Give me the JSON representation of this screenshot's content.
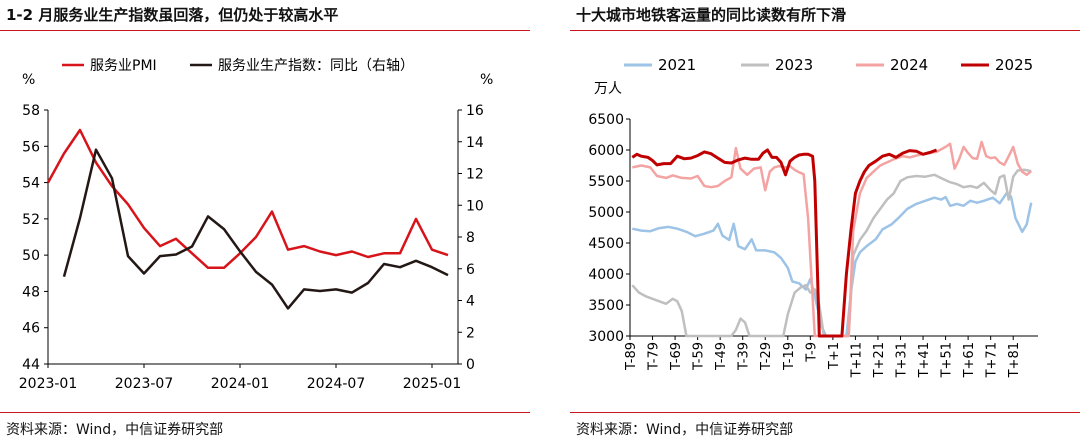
{
  "left": {
    "title": "1-2 月服务业生产指数虽回落，但仍处于较高水平",
    "source": "资料来源：Wind，中信证券研究部",
    "chart_data": {
      "type": "line",
      "y_unit_left": "%",
      "y_unit_right": "%",
      "yticks_left": [
        "58",
        "56",
        "54",
        "52",
        "50",
        "48",
        "46",
        "44"
      ],
      "yticks_right": [
        "16",
        "14",
        "12",
        "10",
        "8",
        "6",
        "4",
        "2",
        "0"
      ],
      "ylim_left": [
        44,
        58
      ],
      "ylim_right": [
        0,
        16
      ],
      "xticks": [
        "2023-01",
        "2023-07",
        "2024-01",
        "2024-07",
        "2025-01"
      ],
      "x": [
        "2023-01",
        "2023-02",
        "2023-03",
        "2023-04",
        "2023-05",
        "2023-06",
        "2023-07",
        "2023-08",
        "2023-09",
        "2023-10",
        "2023-11",
        "2023-12",
        "2024-01",
        "2024-02",
        "2024-03",
        "2024-04",
        "2024-05",
        "2024-06",
        "2024-07",
        "2024-08",
        "2024-09",
        "2024-10",
        "2024-11",
        "2024-12",
        "2025-01",
        "2025-02"
      ],
      "series": [
        {
          "name": "服务业PMI",
          "axis": "left",
          "color": "#d7141a",
          "values": [
            54.0,
            55.6,
            56.9,
            55.1,
            53.8,
            52.8,
            51.5,
            50.5,
            50.9,
            50.1,
            49.3,
            49.3,
            50.1,
            51.0,
            52.4,
            50.3,
            50.5,
            50.2,
            50.0,
            50.2,
            49.9,
            50.1,
            50.1,
            52.0,
            50.3,
            50.0
          ]
        },
        {
          "name": "服务业生产指数：同比（右轴）",
          "axis": "right",
          "color": "#231815",
          "values": [
            null,
            5.5,
            9.2,
            13.5,
            11.7,
            6.8,
            5.7,
            6.8,
            6.9,
            7.4,
            9.3,
            8.5,
            7.1,
            5.8,
            5.0,
            3.5,
            4.7,
            4.6,
            4.7,
            4.5,
            5.1,
            6.3,
            6.1,
            6.5,
            6.1,
            5.6
          ]
        }
      ]
    }
  },
  "right": {
    "title": "十大城市地铁客运量的同比读数有所下滑",
    "source": "资料来源：Wind，中信证券研究部",
    "chart_data": {
      "type": "line",
      "y_unit": "万人",
      "yticks": [
        "6500",
        "6000",
        "5500",
        "5000",
        "4500",
        "4000",
        "3500",
        "3000"
      ],
      "ylim": [
        3000,
        6500
      ],
      "xlim": [
        -89,
        92
      ],
      "xticks": [
        "T-89",
        "T-79",
        "T-69",
        "T-59",
        "T-49",
        "T-39",
        "T-29",
        "T-19",
        "T-9",
        "T+1",
        "T+11",
        "T+21",
        "T+31",
        "T+41",
        "T+51",
        "T+61",
        "T+71",
        "T+81"
      ],
      "series": [
        {
          "name": "2021",
          "color": "#9dc3e6",
          "points": [
            [
              -88,
              4730
            ],
            [
              -84,
              4700
            ],
            [
              -80,
              4690
            ],
            [
              -76,
              4740
            ],
            [
              -72,
              4760
            ],
            [
              -68,
              4730
            ],
            [
              -64,
              4680
            ],
            [
              -60,
              4610
            ],
            [
              -56,
              4650
            ],
            [
              -52,
              4700
            ],
            [
              -50,
              4810
            ],
            [
              -48,
              4620
            ],
            [
              -45,
              4550
            ],
            [
              -43,
              4810
            ],
            [
              -41,
              4450
            ],
            [
              -38,
              4400
            ],
            [
              -35,
              4560
            ],
            [
              -33,
              4380
            ],
            [
              -29,
              4380
            ],
            [
              -25,
              4350
            ],
            [
              -22,
              4260
            ],
            [
              -19,
              4100
            ],
            [
              -17,
              3880
            ],
            [
              -14,
              3850
            ],
            [
              -11,
              3750
            ],
            [
              -9,
              3920
            ],
            [
              -7,
              3650
            ],
            [
              -4,
              3150
            ],
            [
              -2,
              2960
            ],
            [
              7,
              2960
            ],
            [
              9,
              3700
            ],
            [
              11,
              4200
            ],
            [
              13,
              4350
            ],
            [
              16,
              4450
            ],
            [
              20,
              4560
            ],
            [
              23,
              4720
            ],
            [
              27,
              4800
            ],
            [
              30,
              4900
            ],
            [
              34,
              5050
            ],
            [
              38,
              5130
            ],
            [
              42,
              5180
            ],
            [
              46,
              5230
            ],
            [
              49,
              5200
            ],
            [
              51,
              5240
            ],
            [
              53,
              5100
            ],
            [
              56,
              5130
            ],
            [
              59,
              5100
            ],
            [
              62,
              5180
            ],
            [
              65,
              5150
            ],
            [
              68,
              5180
            ],
            [
              72,
              5230
            ],
            [
              75,
              5140
            ],
            [
              78,
              5300
            ],
            [
              80,
              5250
            ],
            [
              82,
              4900
            ],
            [
              85,
              4680
            ],
            [
              87,
              4800
            ],
            [
              89,
              5150
            ]
          ]
        },
        {
          "name": "2023",
          "color": "#bfbfbf",
          "points": [
            [
              -88,
              3820
            ],
            [
              -85,
              3700
            ],
            [
              -82,
              3640
            ],
            [
              -79,
              3600
            ],
            [
              -76,
              3560
            ],
            [
              -73,
              3520
            ],
            [
              -70,
              3600
            ],
            [
              -68,
              3560
            ],
            [
              -66,
              3400
            ],
            [
              -64,
              2990
            ],
            [
              -44,
              2990
            ],
            [
              -42,
              3100
            ],
            [
              -40,
              3280
            ],
            [
              -38,
              3220
            ],
            [
              -36,
              2990
            ],
            [
              -21,
              2990
            ],
            [
              -19,
              3350
            ],
            [
              -16,
              3700
            ],
            [
              -13,
              3790
            ],
            [
              -11,
              3820
            ],
            [
              -9,
              3700
            ],
            [
              -7,
              3750
            ],
            [
              -5,
              3500
            ],
            [
              -3,
              3000
            ],
            [
              8,
              3000
            ],
            [
              10,
              4300
            ],
            [
              13,
              4550
            ],
            [
              16,
              4700
            ],
            [
              19,
              4900
            ],
            [
              22,
              5050
            ],
            [
              25,
              5200
            ],
            [
              28,
              5300
            ],
            [
              31,
              5500
            ],
            [
              34,
              5560
            ],
            [
              38,
              5580
            ],
            [
              42,
              5570
            ],
            [
              46,
              5600
            ],
            [
              50,
              5530
            ],
            [
              53,
              5480
            ],
            [
              56,
              5450
            ],
            [
              59,
              5400
            ],
            [
              62,
              5420
            ],
            [
              65,
              5390
            ],
            [
              68,
              5470
            ],
            [
              71,
              5350
            ],
            [
              73,
              5290
            ],
            [
              75,
              5560
            ],
            [
              77,
              5590
            ],
            [
              79,
              5200
            ],
            [
              81,
              5570
            ],
            [
              83,
              5670
            ],
            [
              86,
              5680
            ],
            [
              89,
              5660
            ]
          ]
        },
        {
          "name": "2024",
          "color": "#f4a3a3",
          "points": [
            [
              -88,
              5720
            ],
            [
              -84,
              5750
            ],
            [
              -80,
              5720
            ],
            [
              -77,
              5580
            ],
            [
              -73,
              5550
            ],
            [
              -70,
              5590
            ],
            [
              -66,
              5550
            ],
            [
              -62,
              5540
            ],
            [
              -59,
              5580
            ],
            [
              -56,
              5420
            ],
            [
              -53,
              5400
            ],
            [
              -50,
              5420
            ],
            [
              -47,
              5500
            ],
            [
              -44,
              5560
            ],
            [
              -42,
              6030
            ],
            [
              -40,
              5700
            ],
            [
              -37,
              5600
            ],
            [
              -34,
              5700
            ],
            [
              -31,
              5720
            ],
            [
              -29,
              5350
            ],
            [
              -27,
              5650
            ],
            [
              -25,
              5720
            ],
            [
              -23,
              5740
            ],
            [
              -20,
              5720
            ],
            [
              -18,
              5740
            ],
            [
              -16,
              5680
            ],
            [
              -14,
              5640
            ],
            [
              -12,
              5610
            ],
            [
              -10,
              4900
            ],
            [
              -7,
              3000
            ],
            [
              8,
              3000
            ],
            [
              10,
              4700
            ],
            [
              13,
              5300
            ],
            [
              16,
              5550
            ],
            [
              19,
              5650
            ],
            [
              22,
              5750
            ],
            [
              25,
              5800
            ],
            [
              28,
              5850
            ],
            [
              32,
              5900
            ],
            [
              35,
              5880
            ],
            [
              39,
              5920
            ],
            [
              43,
              5950
            ],
            [
              47,
              5970
            ],
            [
              51,
              6050
            ],
            [
              53,
              6100
            ],
            [
              55,
              5700
            ],
            [
              57,
              5850
            ],
            [
              59,
              6050
            ],
            [
              61,
              5950
            ],
            [
              63,
              5870
            ],
            [
              65,
              5860
            ],
            [
              67,
              6130
            ],
            [
              69,
              5900
            ],
            [
              71,
              5870
            ],
            [
              73,
              5880
            ],
            [
              75,
              5800
            ],
            [
              77,
              5760
            ],
            [
              79,
              5900
            ],
            [
              81,
              6050
            ],
            [
              83,
              5780
            ],
            [
              85,
              5650
            ],
            [
              87,
              5600
            ],
            [
              89,
              5660
            ]
          ]
        },
        {
          "name": "2025",
          "color": "#c00000",
          "points": [
            [
              -88,
              5880
            ],
            [
              -86,
              5930
            ],
            [
              -84,
              5900
            ],
            [
              -81,
              5880
            ],
            [
              -79,
              5830
            ],
            [
              -77,
              5760
            ],
            [
              -74,
              5780
            ],
            [
              -71,
              5780
            ],
            [
              -68,
              5900
            ],
            [
              -65,
              5860
            ],
            [
              -62,
              5870
            ],
            [
              -59,
              5910
            ],
            [
              -56,
              5970
            ],
            [
              -53,
              5940
            ],
            [
              -50,
              5870
            ],
            [
              -47,
              5800
            ],
            [
              -44,
              5790
            ],
            [
              -41,
              5840
            ],
            [
              -38,
              5870
            ],
            [
              -35,
              5850
            ],
            [
              -32,
              5850
            ],
            [
              -30,
              5950
            ],
            [
              -28,
              6000
            ],
            [
              -26,
              5880
            ],
            [
              -24,
              5880
            ],
            [
              -22,
              5800
            ],
            [
              -20,
              5600
            ],
            [
              -18,
              5820
            ],
            [
              -16,
              5880
            ],
            [
              -14,
              5920
            ],
            [
              -12,
              5930
            ],
            [
              -10,
              5930
            ],
            [
              -8,
              5900
            ],
            [
              -7,
              5500
            ],
            [
              -5,
              3000
            ],
            [
              5,
              3000
            ],
            [
              7,
              4000
            ],
            [
              9,
              4700
            ],
            [
              11,
              5300
            ],
            [
              13,
              5500
            ],
            [
              15,
              5650
            ],
            [
              17,
              5750
            ],
            [
              20,
              5820
            ],
            [
              23,
              5900
            ],
            [
              26,
              5930
            ],
            [
              29,
              5880
            ],
            [
              32,
              5950
            ],
            [
              35,
              5990
            ],
            [
              38,
              5980
            ],
            [
              41,
              5930
            ],
            [
              44,
              5960
            ],
            [
              47,
              6000
            ]
          ]
        }
      ]
    }
  }
}
